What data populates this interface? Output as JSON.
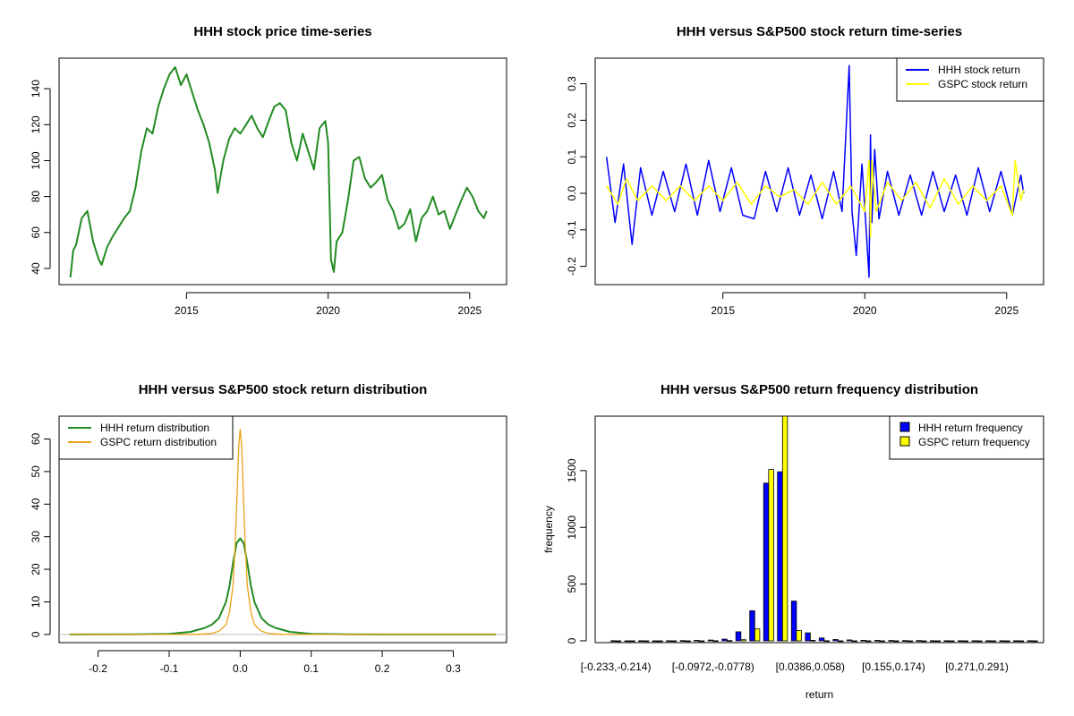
{
  "colors": {
    "price_line": "#228B22",
    "hhh_return": "#0000FF",
    "gspc_return": "#FFFF00",
    "hhh_density": "#228B22",
    "gspc_density": "#E8A317",
    "hist_hhh": "#0000FF",
    "hist_gspc": "#FFFF00",
    "axis": "#000000",
    "zero_line": "#BEBEBE"
  },
  "chart_data": [
    {
      "id": "price",
      "type": "line",
      "title": "HHH stock price time-series",
      "xlabel": "",
      "ylabel": "",
      "xlim": [
        2010.5,
        2026.3
      ],
      "ylim": [
        31,
        157
      ],
      "xticks": [
        2015,
        2020,
        2025
      ],
      "xtick_labels": [
        "2015",
        "2020",
        "2025"
      ],
      "yticks": [
        40,
        60,
        80,
        100,
        120,
        140
      ],
      "ytick_labels": [
        "40",
        "60",
        "80",
        "100",
        "120",
        "140"
      ],
      "series": [
        {
          "name": "HHH stock price",
          "x": [
            2010.9,
            2011.0,
            2011.1,
            2011.3,
            2011.5,
            2011.7,
            2011.9,
            2012.0,
            2012.2,
            2012.4,
            2012.6,
            2012.8,
            2013.0,
            2013.2,
            2013.4,
            2013.6,
            2013.8,
            2014.0,
            2014.2,
            2014.4,
            2014.6,
            2014.8,
            2015.0,
            2015.2,
            2015.4,
            2015.6,
            2015.8,
            2016.0,
            2016.1,
            2016.3,
            2016.5,
            2016.7,
            2016.9,
            2017.1,
            2017.3,
            2017.5,
            2017.7,
            2017.9,
            2018.1,
            2018.3,
            2018.5,
            2018.7,
            2018.9,
            2019.1,
            2019.3,
            2019.5,
            2019.7,
            2019.9,
            2020.0,
            2020.1,
            2020.2,
            2020.3,
            2020.5,
            2020.7,
            2020.9,
            2021.1,
            2021.3,
            2021.5,
            2021.7,
            2021.9,
            2022.1,
            2022.3,
            2022.5,
            2022.7,
            2022.9,
            2023.1,
            2023.3,
            2023.5,
            2023.7,
            2023.9,
            2024.1,
            2024.3,
            2024.5,
            2024.7,
            2024.9,
            2025.1,
            2025.3,
            2025.5,
            2025.6
          ],
          "y": [
            35,
            50,
            53,
            68,
            72,
            55,
            45,
            42,
            52,
            58,
            63,
            68,
            72,
            85,
            105,
            118,
            115,
            130,
            140,
            148,
            152,
            142,
            148,
            138,
            128,
            120,
            110,
            95,
            82,
            100,
            112,
            118,
            115,
            120,
            125,
            118,
            113,
            122,
            130,
            132,
            128,
            110,
            100,
            115,
            105,
            95,
            118,
            122,
            110,
            45,
            38,
            55,
            60,
            78,
            100,
            102,
            90,
            85,
            88,
            92,
            78,
            72,
            62,
            65,
            73,
            55,
            68,
            72,
            80,
            70,
            72,
            62,
            70,
            78,
            85,
            80,
            72,
            68,
            72
          ]
        }
      ]
    },
    {
      "id": "returns",
      "type": "line",
      "title": "HHH versus S&P500 stock return time-series",
      "xlabel": "",
      "ylabel": "",
      "xlim": [
        2010.5,
        2026.3
      ],
      "ylim": [
        -0.25,
        0.37
      ],
      "xticks": [
        2015,
        2020,
        2025
      ],
      "xtick_labels": [
        "2015",
        "2020",
        "2025"
      ],
      "yticks": [
        -0.2,
        -0.1,
        0.0,
        0.1,
        0.2,
        0.3
      ],
      "ytick_labels": [
        "-0.2",
        "-0.1",
        "0.0",
        "0.1",
        "0.2",
        "0.3"
      ],
      "legend": {
        "position": "top-right",
        "entries": [
          "HHH stock return",
          "GSPC stock return"
        ]
      },
      "series": [
        {
          "name": "HHH stock return",
          "x": [
            2010.9,
            2011.2,
            2011.5,
            2011.8,
            2012.1,
            2012.5,
            2012.9,
            2013.3,
            2013.7,
            2014.1,
            2014.5,
            2014.9,
            2015.3,
            2015.7,
            2016.1,
            2016.5,
            2016.9,
            2017.3,
            2017.7,
            2018.1,
            2018.5,
            2018.9,
            2019.2,
            2019.45,
            2019.55,
            2019.7,
            2019.9,
            2020.05,
            2020.15,
            2020.2,
            2020.25,
            2020.35,
            2020.5,
            2020.8,
            2021.2,
            2021.6,
            2022.0,
            2022.4,
            2022.8,
            2023.2,
            2023.6,
            2024.0,
            2024.4,
            2024.8,
            2025.2,
            2025.5,
            2025.6
          ],
          "y": [
            0.1,
            -0.08,
            0.08,
            -0.14,
            0.07,
            -0.06,
            0.06,
            -0.05,
            0.08,
            -0.06,
            0.09,
            -0.05,
            0.07,
            -0.06,
            -0.07,
            0.06,
            -0.05,
            0.07,
            -0.06,
            0.05,
            -0.07,
            0.06,
            -0.05,
            0.35,
            -0.05,
            -0.17,
            0.08,
            -0.1,
            -0.23,
            0.16,
            -0.08,
            0.12,
            -0.07,
            0.06,
            -0.06,
            0.05,
            -0.06,
            0.06,
            -0.05,
            0.05,
            -0.06,
            0.07,
            -0.05,
            0.06,
            -0.06,
            0.05,
            0.0
          ]
        },
        {
          "name": "GSPC stock return",
          "x": [
            2010.9,
            2011.3,
            2011.6,
            2012.0,
            2012.5,
            2013.0,
            2013.5,
            2014.0,
            2014.5,
            2015.0,
            2015.5,
            2016.0,
            2016.5,
            2017.0,
            2017.5,
            2018.0,
            2018.5,
            2019.0,
            2019.5,
            2020.0,
            2020.15,
            2020.2,
            2020.25,
            2020.4,
            2020.8,
            2021.3,
            2021.8,
            2022.3,
            2022.8,
            2023.3,
            2023.8,
            2024.3,
            2024.8,
            2025.2,
            2025.3,
            2025.5,
            2025.6
          ],
          "y": [
            0.02,
            -0.03,
            0.04,
            -0.02,
            0.02,
            -0.02,
            0.02,
            -0.02,
            0.02,
            -0.02,
            0.03,
            -0.03,
            0.02,
            -0.01,
            0.01,
            -0.03,
            0.03,
            -0.03,
            0.02,
            -0.05,
            0.09,
            -0.12,
            0.09,
            -0.05,
            0.03,
            -0.02,
            0.03,
            -0.04,
            0.04,
            -0.03,
            0.02,
            -0.02,
            0.02,
            -0.06,
            0.09,
            -0.02,
            0.01
          ]
        }
      ]
    },
    {
      "id": "density",
      "type": "line",
      "title": "HHH versus S&P500 stock return distribution",
      "xlabel": "",
      "ylabel": "",
      "xlim": [
        -0.255,
        0.375
      ],
      "ylim": [
        -2.5,
        67
      ],
      "xticks": [
        -0.2,
        -0.1,
        0.0,
        0.1,
        0.2,
        0.3
      ],
      "xtick_labels": [
        "-0.2",
        "-0.1",
        "0.0",
        "0.1",
        "0.2",
        "0.3"
      ],
      "yticks": [
        0,
        10,
        20,
        30,
        40,
        50,
        60
      ],
      "ytick_labels": [
        "0",
        "10",
        "20",
        "30",
        "40",
        "50",
        "60"
      ],
      "legend": {
        "position": "top-left",
        "entries": [
          "HHH return distribution",
          "GSPC return distribution"
        ]
      },
      "series": [
        {
          "name": "HHH return distribution",
          "x": [
            -0.24,
            -0.15,
            -0.1,
            -0.07,
            -0.05,
            -0.04,
            -0.03,
            -0.02,
            -0.015,
            -0.01,
            -0.005,
            0.0,
            0.005,
            0.01,
            0.015,
            0.02,
            0.03,
            0.04,
            0.05,
            0.07,
            0.1,
            0.15,
            0.2,
            0.36
          ],
          "y": [
            0,
            0.05,
            0.2,
            0.8,
            2,
            3,
            5,
            10,
            15,
            22,
            28,
            29.5,
            28,
            22,
            15,
            10,
            5,
            3,
            2,
            0.8,
            0.2,
            0.05,
            0,
            0
          ]
        },
        {
          "name": "GSPC return distribution",
          "x": [
            -0.24,
            -0.1,
            -0.06,
            -0.04,
            -0.03,
            -0.02,
            -0.015,
            -0.01,
            -0.007,
            -0.004,
            -0.002,
            0.0,
            0.002,
            0.004,
            0.007,
            0.01,
            0.015,
            0.02,
            0.03,
            0.04,
            0.06,
            0.1,
            0.36
          ],
          "y": [
            0,
            0,
            0.05,
            0.3,
            1,
            3,
            7,
            15,
            28,
            45,
            58,
            63,
            58,
            45,
            28,
            15,
            7,
            3,
            1,
            0.3,
            0.05,
            0,
            0
          ]
        }
      ]
    },
    {
      "id": "histogram",
      "type": "bar",
      "title": "HHH versus S&P500 return frequency distribution",
      "xlabel": "return",
      "ylabel": "frequency",
      "ylim": [
        0,
        1980
      ],
      "yticks": [
        0,
        500,
        1000,
        1500
      ],
      "ytick_labels": [
        "0",
        "500",
        "1000",
        "1500"
      ],
      "xtick_labels": [
        "[-0.233,-0.214)",
        "[-0.0972,-0.0778)",
        "[0.0386,0.058)",
        "[0.155,0.174)",
        "[0.271,0.291)"
      ],
      "xtick_label_bins": [
        0,
        7,
        14,
        20,
        26
      ],
      "bin_count": 31,
      "legend": {
        "position": "top-right",
        "entries": [
          "HHH return frequency",
          "GSPC return frequency"
        ]
      },
      "series": [
        {
          "name": "HHH return frequency",
          "values": [
            1,
            0,
            1,
            0,
            1,
            2,
            4,
            7,
            15,
            80,
            265,
            1390,
            1490,
            350,
            70,
            25,
            12,
            8,
            5,
            4,
            3,
            2,
            2,
            1,
            1,
            1,
            1,
            1,
            1,
            1,
            1
          ]
        },
        {
          "name": "GSPC return frequency",
          "values": [
            0,
            0,
            0,
            0,
            0,
            0,
            0,
            1,
            2,
            10,
            105,
            1510,
            1980,
            90,
            5,
            1,
            0,
            0,
            0,
            0,
            0,
            0,
            0,
            0,
            0,
            0,
            0,
            0,
            0,
            0,
            0
          ]
        }
      ]
    }
  ]
}
